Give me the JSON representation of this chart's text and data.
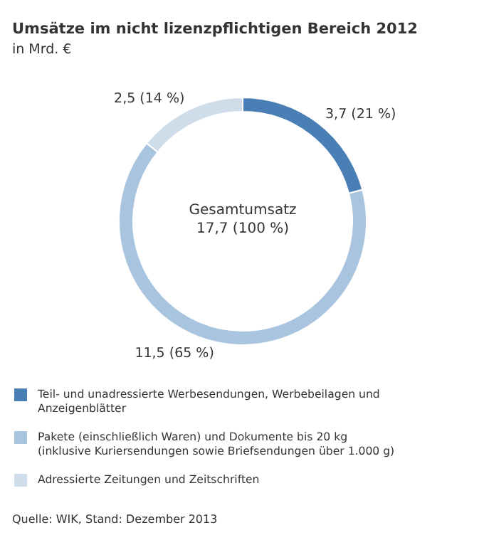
{
  "chart_data": {
    "type": "donut",
    "title": "Umsätze im nicht lizenzpflichtigen Bereich 2012",
    "subtitle": "in Mrd. €",
    "categories": [
      "Teil- und unadressierte Werbesendungen, Werbebeilagen und Anzeigenblätter",
      "Pakete (einschließlich Waren) und Dokumente bis 20 kg (inklusive Kuriersendungen sowie Briefsendungen über 1.000 g)",
      "Adressierte Zeitungen und Zeitschriften"
    ],
    "values": [
      3.7,
      11.5,
      2.5
    ],
    "colors": [
      "#4a7fb5",
      "#a9c4de",
      "#cfdcea"
    ],
    "value_labels": [
      "3,7 (21 %)",
      "11,5 (65 %)",
      "2,5 (14 %)"
    ],
    "annotations": [
      "Gesamtumsatz",
      "17,7 (100 %)",
      "Quelle: WIK, Stand: Dezember 2013"
    ],
    "legend": "bottom"
  }
}
